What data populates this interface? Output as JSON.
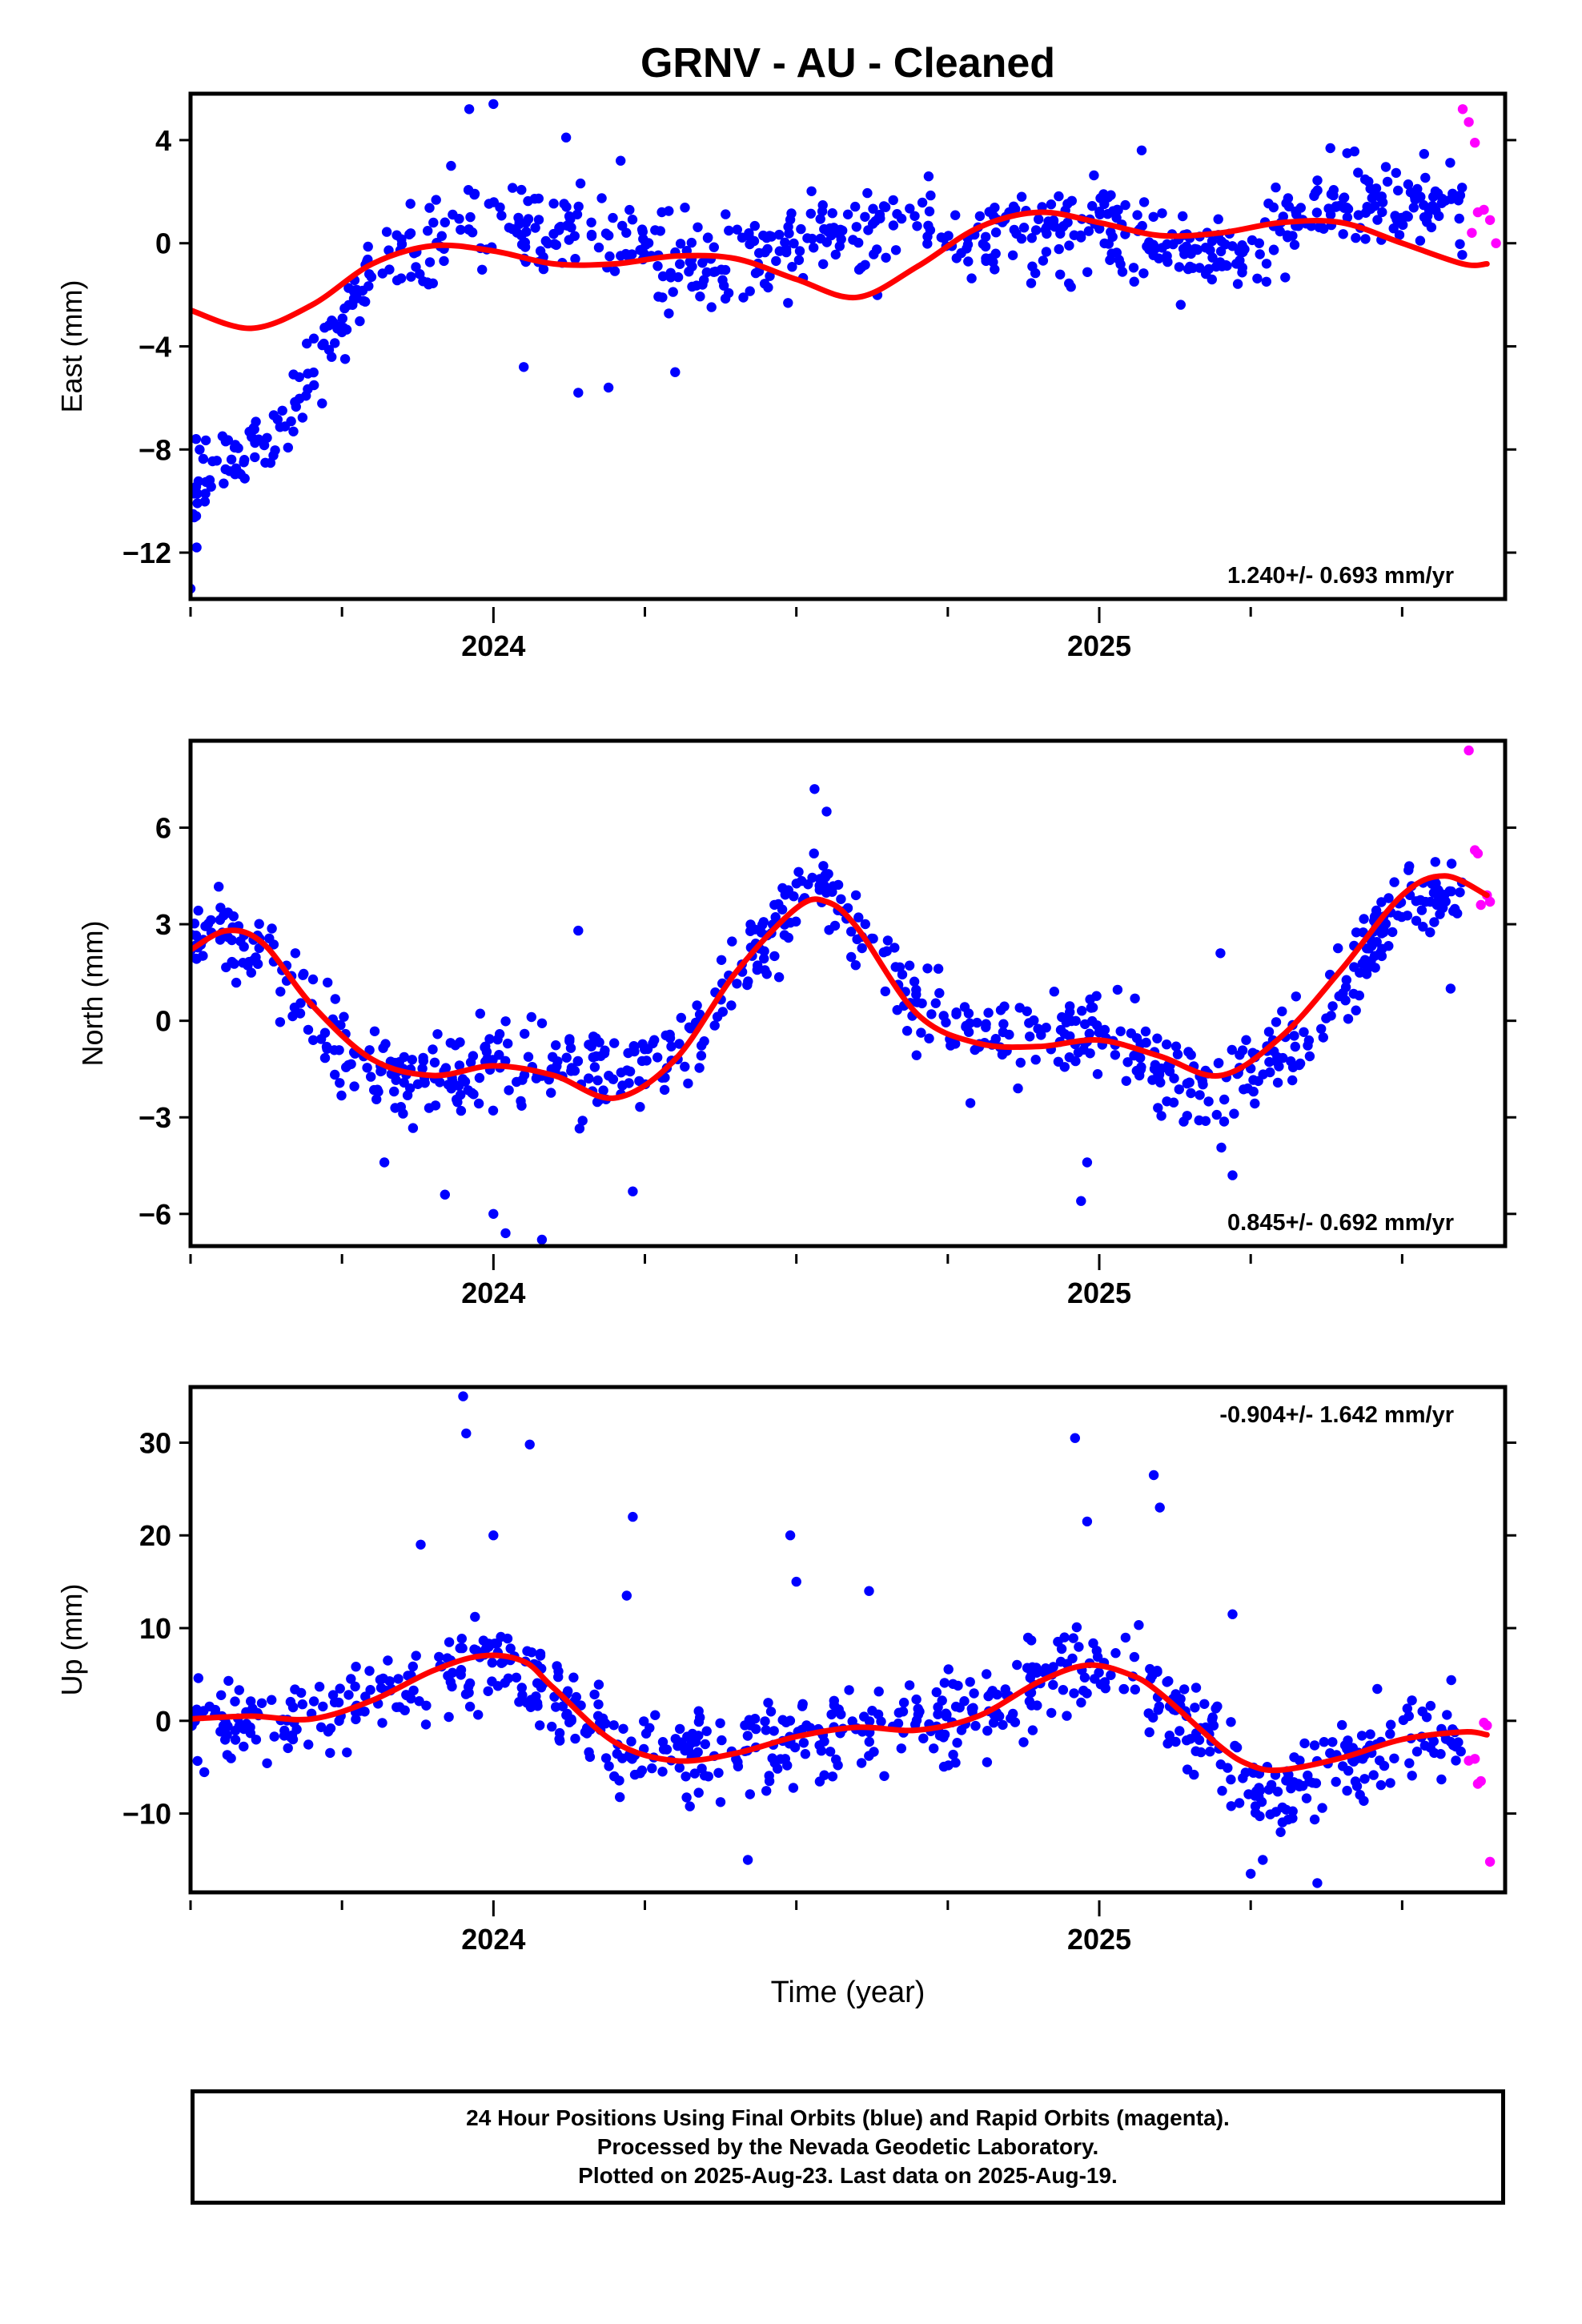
{
  "title": "GRNV  - AU - Cleaned",
  "footer": {
    "line1": "24 Hour Positions Using Final Orbits (blue) and Rapid Orbits (magenta).",
    "line2": "Processed by the Nevada Geodetic Laboratory.",
    "line3": "Plotted on 2025-Aug-23. Last data on 2025-Aug-19."
  },
  "colors": {
    "final": "#0000ff",
    "rapid": "#ff00ff",
    "fit": "#ff0000",
    "frame": "#000000"
  },
  "chart_data": [
    {
      "type": "scatter",
      "ylabel": "East (mm)",
      "xlim": [
        2023.5,
        2025.67
      ],
      "ylim": [
        -13.8,
        5.8
      ],
      "yticks": [
        4,
        0,
        -4,
        -8,
        -12
      ],
      "ytick_labels": [
        "4",
        "0",
        "−4",
        "−8",
        "−12"
      ],
      "xticks": [
        2024,
        2025
      ],
      "xminor": [
        2023.5,
        2023.75,
        2024.25,
        2024.5,
        2024.75,
        2025.25,
        2025.5
      ],
      "rate_label": "1.240+/- 0.693 mm/yr",
      "rate_position": "bottom-right",
      "fit_series": {
        "name": "",
        "x": [
          2023.5,
          2023.6,
          2023.7,
          2023.8,
          2023.9,
          2024.0,
          2024.1,
          2024.2,
          2024.3,
          2024.4,
          2024.5,
          2024.6,
          2024.7,
          2024.8,
          2024.9,
          2025.0,
          2025.1,
          2025.2,
          2025.3,
          2025.4,
          2025.5,
          2025.6,
          2025.64
        ],
        "y": [
          -2.6,
          -3.3,
          -2.4,
          -0.8,
          -0.1,
          -0.3,
          -0.8,
          -0.8,
          -0.5,
          -0.6,
          -1.4,
          -2.1,
          -0.9,
          0.6,
          1.2,
          0.8,
          0.3,
          0.4,
          0.8,
          0.8,
          0.0,
          -0.8,
          -0.8
        ]
      },
      "final_anchors": {
        "x": [
          2023.5,
          2023.6,
          2023.65,
          2023.72,
          2023.8,
          2023.9,
          2024.0,
          2024.1,
          2024.2,
          2024.3,
          2024.4,
          2024.5,
          2024.6,
          2024.7,
          2024.8,
          2024.9,
          2025.0,
          2025.1,
          2025.2,
          2025.3,
          2025.4,
          2025.5,
          2025.6
        ],
        "y": [
          -9.2,
          -8.2,
          -7.5,
          -4.2,
          -0.8,
          0.0,
          0.8,
          1.0,
          0.3,
          -0.6,
          -0.8,
          -0.2,
          0.6,
          0.7,
          0.2,
          0.0,
          0.6,
          -0.2,
          -0.4,
          0.5,
          1.6,
          1.6,
          1.5
        ]
      },
      "final_spread": 1.15,
      "final_range": [
        2023.5,
        2025.6
      ],
      "final_count": 700,
      "final_outliers": {
        "x": [
          2023.5,
          2023.51,
          2023.96,
          2024.0,
          2024.12,
          2024.14,
          2024.19,
          2024.21,
          2023.93,
          2024.05,
          2024.3,
          2025.07
        ],
        "y": [
          -13.4,
          -11.8,
          5.2,
          5.4,
          4.1,
          -5.8,
          -5.6,
          3.2,
          3.0,
          -4.8,
          -5.0,
          3.6
        ]
      },
      "rapid": {
        "x": [
          2025.6,
          2025.61,
          2025.62,
          2025.615,
          2025.625,
          2025.635,
          2025.645,
          2025.655
        ],
        "y": [
          5.2,
          4.7,
          3.9,
          0.4,
          1.2,
          1.3,
          0.9,
          0.0
        ]
      }
    },
    {
      "type": "scatter",
      "ylabel": "North (mm)",
      "xlim": [
        2023.5,
        2025.67
      ],
      "ylim": [
        -7.0,
        8.7
      ],
      "yticks": [
        6,
        3,
        0,
        -3,
        -6
      ],
      "ytick_labels": [
        "6",
        "3",
        "0",
        "−3",
        "−6"
      ],
      "xticks": [
        2024,
        2025
      ],
      "xminor": [
        2023.5,
        2023.75,
        2024.25,
        2024.5,
        2024.75,
        2025.25,
        2025.5
      ],
      "rate_label": "0.845+/- 0.692 mm/yr",
      "rate_position": "bottom-right",
      "fit_series": {
        "name": "",
        "x": [
          2023.5,
          2023.56,
          2023.62,
          2023.7,
          2023.8,
          2023.9,
          2024.0,
          2024.1,
          2024.2,
          2024.3,
          2024.4,
          2024.5,
          2024.55,
          2024.6,
          2024.7,
          2024.8,
          2024.9,
          2025.0,
          2025.1,
          2025.2,
          2025.3,
          2025.4,
          2025.5,
          2025.57,
          2025.64
        ],
        "y": [
          2.2,
          2.8,
          2.4,
          0.5,
          -1.2,
          -1.7,
          -1.4,
          -1.7,
          -2.4,
          -1.2,
          1.5,
          3.5,
          3.7,
          2.9,
          0.2,
          -0.7,
          -0.8,
          -0.6,
          -1.1,
          -1.7,
          -0.5,
          1.6,
          3.9,
          4.5,
          3.9
        ]
      },
      "final_anchors": {
        "x": [
          2023.5,
          2023.56,
          2023.62,
          2023.7,
          2023.8,
          2023.9,
          2024.0,
          2024.1,
          2024.2,
          2024.3,
          2024.4,
          2024.5,
          2024.55,
          2024.6,
          2024.7,
          2024.8,
          2024.9,
          2025.0,
          2025.1,
          2025.2,
          2025.3,
          2025.4,
          2025.5,
          2025.57,
          2025.6
        ],
        "y": [
          2.2,
          2.8,
          2.4,
          0.4,
          -1.4,
          -2.2,
          -1.0,
          -1.4,
          -1.9,
          -1.2,
          1.6,
          3.7,
          4.2,
          3.1,
          0.3,
          -0.5,
          -0.6,
          -0.2,
          -1.4,
          -2.2,
          -0.9,
          1.0,
          3.6,
          4.2,
          3.7
        ]
      },
      "final_spread": 0.9,
      "final_range": [
        2023.5,
        2025.6
      ],
      "final_count": 700,
      "final_outliers": {
        "x": [
          2024.53,
          2024.55,
          2024.14,
          2023.92,
          2024.0,
          2024.23,
          2024.97,
          2024.98,
          2025.22,
          2024.02,
          2024.08,
          2025.2,
          2023.82,
          2025.58
        ],
        "y": [
          7.2,
          6.5,
          2.8,
          -5.4,
          -6.0,
          -5.3,
          -5.6,
          -4.4,
          -4.8,
          -6.6,
          -6.8,
          2.1,
          -4.4,
          1.0
        ]
      },
      "rapid": {
        "x": [
          2025.61,
          2025.62,
          2025.625,
          2025.63,
          2025.64,
          2025.645
        ],
        "y": [
          8.4,
          5.3,
          5.2,
          3.6,
          3.9,
          3.7
        ]
      }
    },
    {
      "type": "scatter",
      "ylabel": "Up (mm)",
      "xlabel": "Time (year)",
      "xlim": [
        2023.5,
        2025.67
      ],
      "ylim": [
        -18.5,
        36.0
      ],
      "yticks": [
        30,
        20,
        10,
        0,
        -10
      ],
      "ytick_labels": [
        "30",
        "20",
        "10",
        "0",
        "−10"
      ],
      "xticks": [
        2024,
        2025
      ],
      "xminor": [
        2023.5,
        2023.75,
        2024.25,
        2024.5,
        2024.75,
        2025.25,
        2025.5
      ],
      "rate_label": "-0.904+/- 1.642 mm/yr",
      "rate_position": "top-right",
      "fit_series": {
        "name": "",
        "x": [
          2023.5,
          2023.6,
          2023.7,
          2023.8,
          2023.9,
          2023.98,
          2024.05,
          2024.1,
          2024.2,
          2024.3,
          2024.4,
          2024.5,
          2024.6,
          2024.7,
          2024.8,
          2024.9,
          2024.98,
          2025.05,
          2025.1,
          2025.2,
          2025.25,
          2025.3,
          2025.4,
          2025.5,
          2025.6,
          2025.64
        ],
        "y": [
          0.2,
          0.5,
          0.2,
          2.2,
          5.4,
          7.0,
          6.4,
          3.5,
          -2.3,
          -4.3,
          -3.5,
          -1.7,
          -0.7,
          -1.0,
          0.5,
          4.2,
          6.0,
          5.0,
          3.0,
          -2.8,
          -4.8,
          -5.3,
          -4.0,
          -2.0,
          -1.2,
          -1.5
        ]
      },
      "final_anchors": {
        "x": [
          2023.5,
          2023.6,
          2023.7,
          2023.8,
          2023.9,
          2023.98,
          2024.05,
          2024.1,
          2024.2,
          2024.3,
          2024.4,
          2024.5,
          2024.6,
          2024.7,
          2024.8,
          2024.9,
          2024.98,
          2025.05,
          2025.1,
          2025.2,
          2025.25,
          2025.3,
          2025.4,
          2025.5,
          2025.6
        ],
        "y": [
          0.5,
          0.3,
          0.6,
          2.6,
          5.0,
          6.3,
          5.6,
          3.0,
          -2.6,
          -4.4,
          -3.4,
          -1.8,
          -0.8,
          -0.7,
          1.0,
          4.2,
          6.2,
          5.2,
          2.5,
          -3.5,
          -6.2,
          -8.0,
          -4.5,
          -1.4,
          -1.2
        ]
      },
      "final_spread": 3.1,
      "final_range": [
        2023.5,
        2025.6
      ],
      "final_count": 700,
      "final_outliers": {
        "x": [
          2023.95,
          2023.955,
          2024.06,
          2024.0,
          2024.23,
          2024.22,
          2024.49,
          2024.5,
          2024.62,
          2024.96,
          2024.98,
          2025.09,
          2025.1,
          2025.22,
          2025.25,
          2025.27,
          2025.36,
          2023.88,
          2024.42
        ],
        "y": [
          35.0,
          31.0,
          29.8,
          20.0,
          22.0,
          13.5,
          20.0,
          15.0,
          14.0,
          30.5,
          21.5,
          26.5,
          23.0,
          11.5,
          -16.5,
          -15.0,
          -17.5,
          19.0,
          -15.0
        ]
      },
      "rapid": {
        "x": [
          2025.61,
          2025.62,
          2025.625,
          2025.63,
          2025.635,
          2025.64,
          2025.645
        ],
        "y": [
          -4.3,
          -4.1,
          -6.8,
          -6.5,
          -0.2,
          -0.5,
          -15.2
        ]
      }
    }
  ]
}
